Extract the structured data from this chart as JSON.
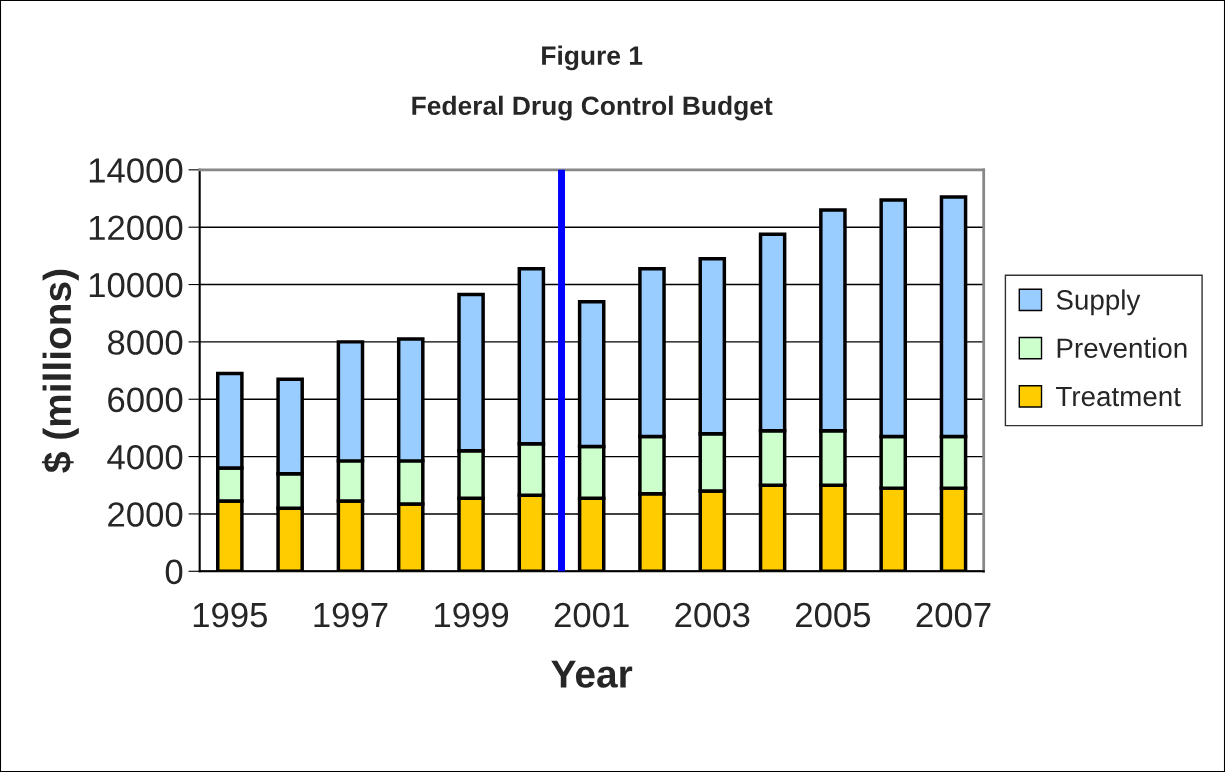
{
  "chart_data": {
    "type": "bar",
    "title": "Figure 1",
    "subtitle": "Federal Drug Control Budget",
    "xlabel": "Year",
    "ylabel": "$ (millions)",
    "x": [
      1995,
      1996,
      1997,
      1998,
      1999,
      2000,
      2001,
      2002,
      2003,
      2004,
      2005,
      2006,
      2007
    ],
    "xlim": [
      1994.5,
      2007.5
    ],
    "xticks": [
      1995,
      1997,
      1999,
      2001,
      2003,
      2005,
      2007
    ],
    "stacked": true,
    "series": [
      {
        "name": "Treatment",
        "color": "#ffcc00",
        "values": [
          2450,
          2200,
          2450,
          2350,
          2550,
          2650,
          2550,
          2700,
          2800,
          3000,
          3000,
          2900,
          2900
        ]
      },
      {
        "name": "Prevention",
        "color": "#ccffcc",
        "values": [
          1150,
          1200,
          1400,
          1500,
          1650,
          1800,
          1800,
          2000,
          2000,
          1900,
          1900,
          1800,
          1800
        ]
      },
      {
        "name": "Supply",
        "color": "#99ccff",
        "values": [
          3300,
          3300,
          4150,
          4250,
          5450,
          6100,
          5050,
          5850,
          6100,
          6850,
          7700,
          8250,
          8350
        ]
      }
    ],
    "ylim": [
      0,
      14000
    ],
    "yticks": [
      0,
      2000,
      4000,
      6000,
      8000,
      10000,
      12000,
      14000
    ],
    "grid": "y",
    "legend": "right",
    "ref_lines": [
      {
        "axis": "x",
        "value": 2000.5,
        "color": "#0000ff"
      }
    ]
  }
}
